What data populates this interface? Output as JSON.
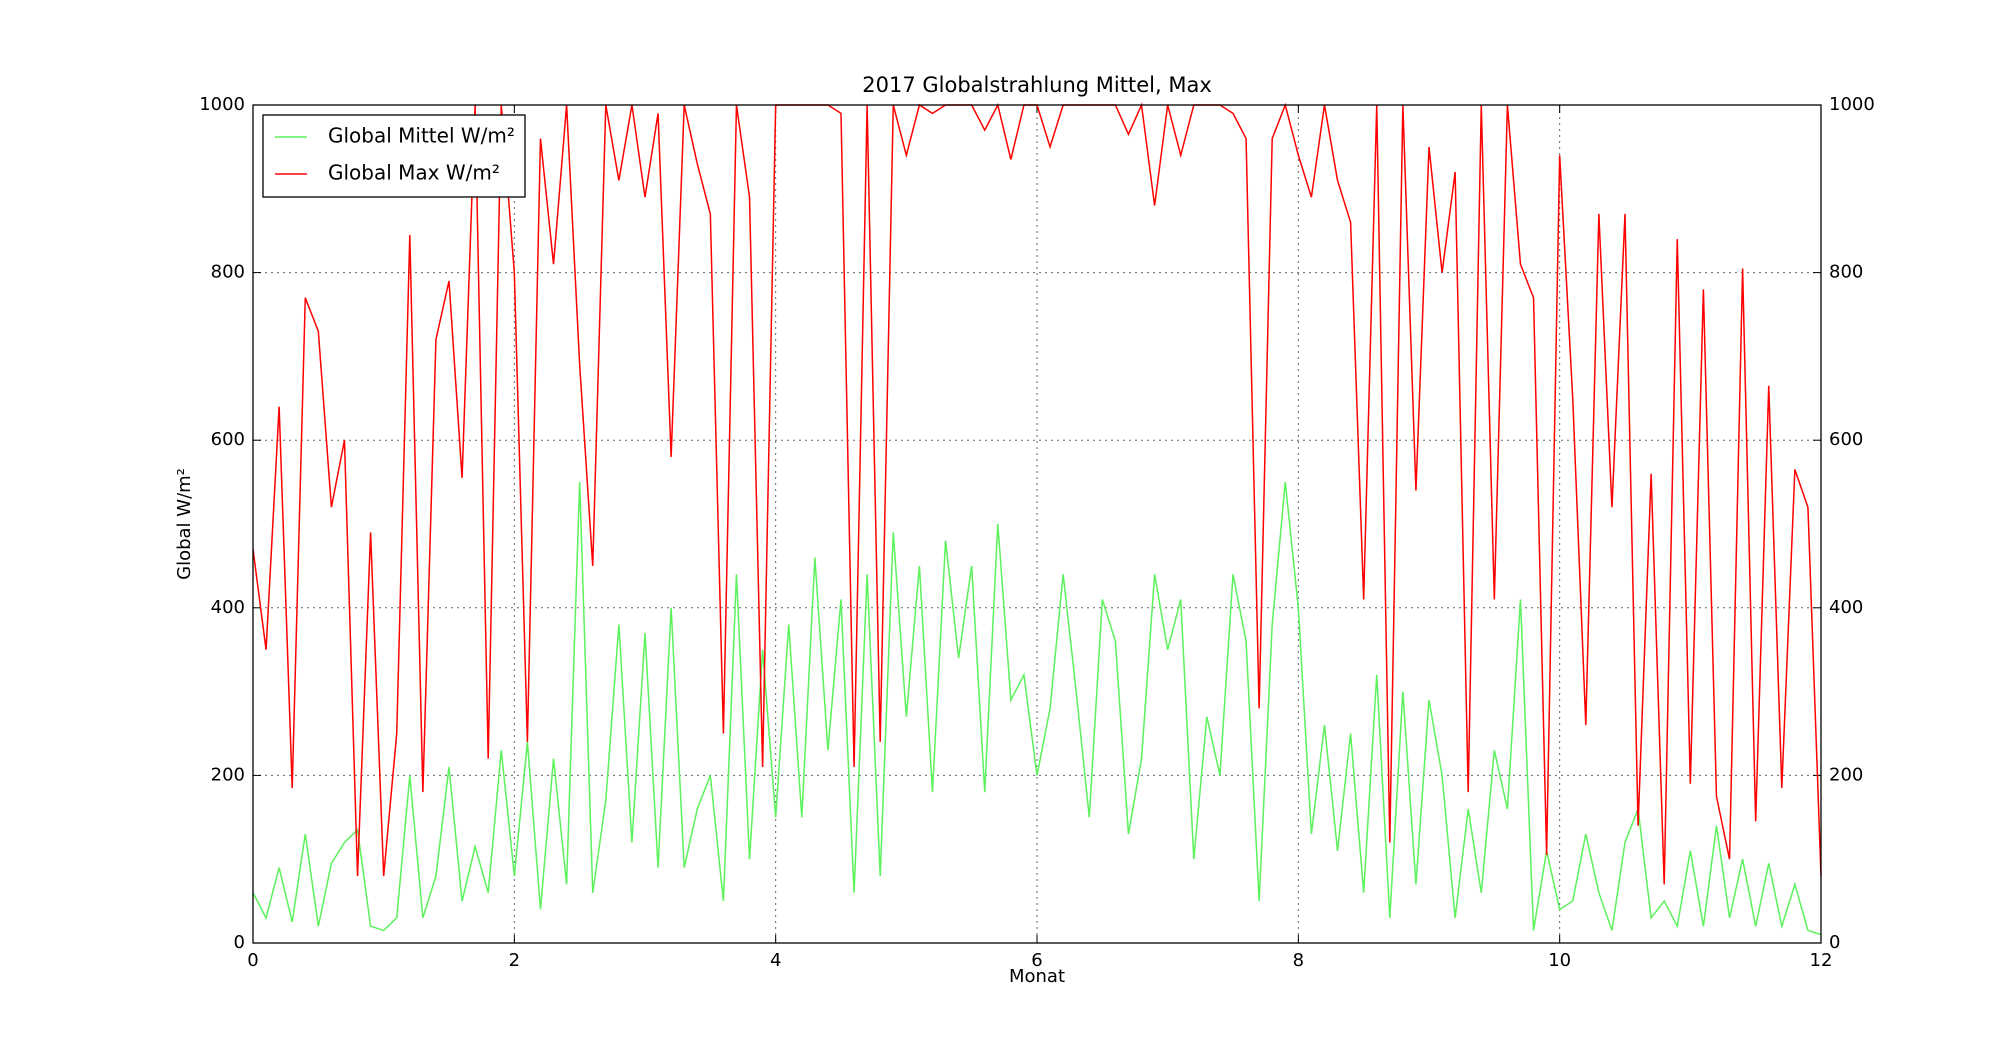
{
  "chart_data": {
    "type": "line",
    "title": "2017 Globalstrahlung Mittel, Max",
    "xlabel": "Monat",
    "ylabel": "Global W/m²",
    "x": [
      0,
      0.1,
      0.2,
      0.3,
      0.4,
      0.5,
      0.6,
      0.7,
      0.8,
      0.9,
      1,
      1.1,
      1.2,
      1.3,
      1.4,
      1.5,
      1.6,
      1.7,
      1.8,
      1.9,
      2,
      2.1,
      2.2,
      2.3,
      2.4,
      2.5,
      2.6,
      2.7,
      2.8,
      2.9,
      3,
      3.1,
      3.2,
      3.3,
      3.4,
      3.5,
      3.6,
      3.7,
      3.8,
      3.9,
      4,
      4.1,
      4.2,
      4.3,
      4.4,
      4.5,
      4.6,
      4.7,
      4.8,
      4.9,
      5,
      5.1,
      5.2,
      5.3,
      5.4,
      5.5,
      5.6,
      5.7,
      5.8,
      5.9,
      6,
      6.1,
      6.2,
      6.3,
      6.4,
      6.5,
      6.6,
      6.7,
      6.8,
      6.9,
      7,
      7.1,
      7.2,
      7.3,
      7.4,
      7.5,
      7.6,
      7.7,
      7.8,
      7.9,
      8,
      8.1,
      8.2,
      8.3,
      8.4,
      8.5,
      8.6,
      8.7,
      8.8,
      8.9,
      9,
      9.1,
      9.2,
      9.3,
      9.4,
      9.5,
      9.6,
      9.7,
      9.8,
      9.9,
      10,
      10.1,
      10.2,
      10.3,
      10.4,
      10.5,
      10.6,
      10.7,
      10.8,
      10.9,
      11,
      11.1,
      11.2,
      11.3,
      11.4,
      11.5,
      11.6,
      11.7,
      11.8,
      11.9,
      12
    ],
    "series": [
      {
        "name": "Global Mittel W/m²",
        "color": "#5cf25c",
        "values": [
          60,
          30,
          90,
          25,
          130,
          20,
          95,
          120,
          135,
          20,
          15,
          30,
          200,
          30,
          80,
          210,
          50,
          115,
          60,
          230,
          80,
          240,
          40,
          220,
          70,
          550,
          60,
          170,
          380,
          120,
          370,
          90,
          400,
          90,
          160,
          200,
          50,
          440,
          100,
          350,
          150,
          380,
          150,
          460,
          230,
          410,
          60,
          440,
          80,
          490,
          270,
          450,
          180,
          480,
          340,
          450,
          180,
          500,
          290,
          320,
          200,
          280,
          440,
          300,
          150,
          410,
          360,
          130,
          220,
          440,
          350,
          410,
          100,
          270,
          200,
          440,
          360,
          50,
          380,
          550,
          400,
          130,
          260,
          110,
          250,
          60,
          320,
          30,
          300,
          70,
          290,
          200,
          30,
          160,
          60,
          230,
          160,
          410,
          15,
          110,
          40,
          50,
          130,
          60,
          15,
          120,
          160,
          30,
          50,
          20,
          110,
          20,
          140,
          30,
          100,
          20,
          95,
          20,
          70,
          15,
          10
        ]
      },
      {
        "name": "Global Max W/m²",
        "color": "#ff0000",
        "values": [
          470,
          350,
          640,
          185,
          770,
          730,
          520,
          600,
          80,
          490,
          80,
          250,
          845,
          180,
          720,
          790,
          555,
          1000,
          220,
          1000,
          800,
          240,
          960,
          810,
          1000,
          690,
          450,
          1000,
          910,
          1000,
          890,
          990,
          580,
          1000,
          930,
          870,
          250,
          1000,
          890,
          210,
          1000,
          1000,
          1000,
          1000,
          1000,
          990,
          210,
          1000,
          240,
          1000,
          940,
          1000,
          990,
          1000,
          1000,
          1000,
          970,
          1000,
          935,
          1000,
          1000,
          950,
          1000,
          1000,
          1000,
          1000,
          1000,
          965,
          1000,
          880,
          1000,
          940,
          1000,
          1000,
          1000,
          990,
          960,
          280,
          960,
          1000,
          940,
          890,
          1000,
          910,
          860,
          410,
          1000,
          120,
          1000,
          540,
          950,
          800,
          920,
          180,
          1000,
          410,
          1000,
          810,
          770,
          105,
          940,
          650,
          260,
          870,
          520,
          870,
          140,
          560,
          70,
          840,
          190,
          780,
          175,
          100,
          805,
          145,
          665,
          185,
          565,
          520,
          80
        ]
      }
    ],
    "xlim": [
      0,
      12
    ],
    "xticks": [
      0,
      2,
      4,
      6,
      8,
      10,
      12
    ],
    "ylim": [
      0,
      1000
    ],
    "yticks": [
      0,
      200,
      400,
      600,
      800,
      1000
    ],
    "y2lim": [
      0,
      1000
    ],
    "y2ticks": [
      0,
      200,
      400,
      600,
      800,
      1000
    ],
    "grid": true,
    "legend": "upper left"
  }
}
